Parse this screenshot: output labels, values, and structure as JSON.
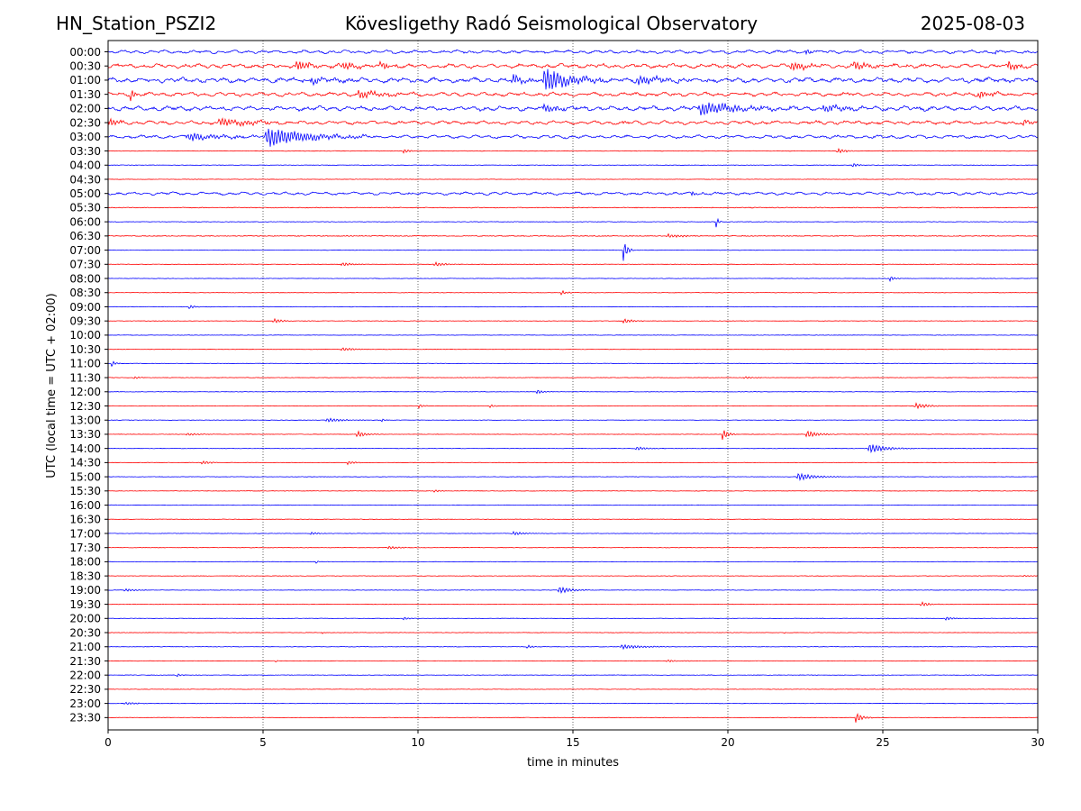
{
  "header": {
    "station": "HN_Station_PSZI2",
    "observatory": "Kövesligethy Radó Seismological Observatory",
    "date": "2025-08-03"
  },
  "chart_data": {
    "type": "line",
    "title": "Kövesligethy Radó Seismological Observatory",
    "xlabel": "time in minutes",
    "ylabel": "UTC (local time = UTC + 02:00)",
    "xlim": [
      0,
      30
    ],
    "xticks": [
      0,
      5,
      10,
      15,
      20,
      25,
      30
    ],
    "grid": "vertical dotted at x = 5, 10, 15, 20, 25",
    "row_labels": [
      "00:00",
      "00:30",
      "01:00",
      "01:30",
      "02:00",
      "02:30",
      "03:00",
      "03:30",
      "04:00",
      "04:30",
      "05:00",
      "05:30",
      "06:00",
      "06:30",
      "07:00",
      "07:30",
      "08:00",
      "08:30",
      "09:00",
      "09:30",
      "10:00",
      "10:30",
      "11:00",
      "11:30",
      "12:00",
      "12:30",
      "13:00",
      "13:30",
      "14:00",
      "14:30",
      "15:00",
      "15:30",
      "16:00",
      "16:30",
      "17:00",
      "17:30",
      "18:00",
      "18:30",
      "19:00",
      "19:30",
      "20:00",
      "20:30",
      "21:00",
      "21:30",
      "22:00",
      "22:30",
      "23:00",
      "23:30"
    ],
    "colors": [
      "#0000ff",
      "#ff0000"
    ],
    "rows_background_noise": [
      1.0,
      1.3,
      1.5,
      1.2,
      1.4,
      1.1,
      1.0,
      0.35,
      0.35,
      0.3,
      0.9,
      0.5,
      0.35,
      0.5,
      0.3,
      0.3,
      0.3,
      0.3,
      0.3,
      0.3,
      0.3,
      0.3,
      0.3,
      0.3,
      0.3,
      0.3,
      0.3,
      0.3,
      0.3,
      0.3,
      0.3,
      0.3,
      0.3,
      0.3,
      0.3,
      0.3,
      0.3,
      0.3,
      0.3,
      0.3,
      0.3,
      0.3,
      0.3,
      0.3,
      0.3,
      0.3,
      0.3,
      0.3
    ],
    "events": [
      {
        "row": 0,
        "t": 22.5,
        "amp": 0.5,
        "dur": 0.6
      },
      {
        "row": 0,
        "t": 28.6,
        "amp": 0.5,
        "dur": 0.3
      },
      {
        "row": 1,
        "t": 6.0,
        "amp": 0.9,
        "dur": 1.5
      },
      {
        "row": 1,
        "t": 7.5,
        "amp": 0.8,
        "dur": 1.2
      },
      {
        "row": 1,
        "t": 8.7,
        "amp": 0.8,
        "dur": 1.0
      },
      {
        "row": 1,
        "t": 22.0,
        "amp": 1.0,
        "dur": 1.2
      },
      {
        "row": 1,
        "t": 24.0,
        "amp": 0.8,
        "dur": 1.5
      },
      {
        "row": 1,
        "t": 29.0,
        "amp": 0.8,
        "dur": 1.0
      },
      {
        "row": 2,
        "t": 13.0,
        "amp": 1.0,
        "dur": 1.0
      },
      {
        "row": 2,
        "t": 14.0,
        "amp": 2.5,
        "dur": 2.2
      },
      {
        "row": 2,
        "t": 17.0,
        "amp": 1.0,
        "dur": 2.0
      },
      {
        "row": 2,
        "t": 6.5,
        "amp": 0.7,
        "dur": 1.2
      },
      {
        "row": 3,
        "t": 0.7,
        "amp": 1.2,
        "dur": 0.5
      },
      {
        "row": 3,
        "t": 8.0,
        "amp": 0.8,
        "dur": 2.0
      },
      {
        "row": 3,
        "t": 28.0,
        "amp": 0.6,
        "dur": 1.5
      },
      {
        "row": 4,
        "t": 14.0,
        "amp": 0.8,
        "dur": 1.5
      },
      {
        "row": 4,
        "t": 19.0,
        "amp": 1.3,
        "dur": 3.5
      },
      {
        "row": 4,
        "t": 23.0,
        "amp": 0.8,
        "dur": 2.0
      },
      {
        "row": 5,
        "t": 0.0,
        "amp": 0.7,
        "dur": 0.8
      },
      {
        "row": 5,
        "t": 3.5,
        "amp": 0.8,
        "dur": 3.0
      },
      {
        "row": 5,
        "t": 16.6,
        "amp": 0.5,
        "dur": 0.2
      },
      {
        "row": 5,
        "t": 29.5,
        "amp": 0.7,
        "dur": 0.5
      },
      {
        "row": 6,
        "t": 2.5,
        "amp": 0.8,
        "dur": 2.5
      },
      {
        "row": 6,
        "t": 5.0,
        "amp": 2.0,
        "dur": 3.5
      },
      {
        "row": 7,
        "t": 9.5,
        "amp": 0.5,
        "dur": 0.5
      },
      {
        "row": 7,
        "t": 23.5,
        "amp": 0.5,
        "dur": 0.8
      },
      {
        "row": 8,
        "t": 24.0,
        "amp": 0.6,
        "dur": 0.4
      },
      {
        "row": 10,
        "t": 18.8,
        "amp": 0.6,
        "dur": 0.4
      },
      {
        "row": 12,
        "t": 19.6,
        "amp": 1.5,
        "dur": 0.2
      },
      {
        "row": 13,
        "t": 18.0,
        "amp": 0.4,
        "dur": 1.5
      },
      {
        "row": 14,
        "t": 16.6,
        "amp": 2.5,
        "dur": 0.35
      },
      {
        "row": 15,
        "t": 7.5,
        "amp": 0.4,
        "dur": 1.0
      },
      {
        "row": 15,
        "t": 10.5,
        "amp": 0.5,
        "dur": 1.0
      },
      {
        "row": 16,
        "t": 25.2,
        "amp": 0.6,
        "dur": 0.4
      },
      {
        "row": 17,
        "t": 14.6,
        "amp": 0.5,
        "dur": 0.5
      },
      {
        "row": 18,
        "t": 2.6,
        "amp": 0.5,
        "dur": 0.4
      },
      {
        "row": 19,
        "t": 5.3,
        "amp": 0.5,
        "dur": 0.8
      },
      {
        "row": 19,
        "t": 16.6,
        "amp": 0.5,
        "dur": 0.8
      },
      {
        "row": 21,
        "t": 7.5,
        "amp": 0.4,
        "dur": 1.0
      },
      {
        "row": 22,
        "t": 0.1,
        "amp": 0.7,
        "dur": 0.3
      },
      {
        "row": 23,
        "t": 0.8,
        "amp": 0.3,
        "dur": 0.5
      },
      {
        "row": 23,
        "t": 20.5,
        "amp": 0.3,
        "dur": 0.8
      },
      {
        "row": 24,
        "t": 13.8,
        "amp": 0.5,
        "dur": 0.6
      },
      {
        "row": 25,
        "t": 26.0,
        "amp": 0.6,
        "dur": 1.2
      },
      {
        "row": 25,
        "t": 10.0,
        "amp": 0.4,
        "dur": 0.5
      },
      {
        "row": 25,
        "t": 12.3,
        "amp": 0.4,
        "dur": 0.4
      },
      {
        "row": 26,
        "t": 7.0,
        "amp": 0.4,
        "dur": 1.5
      },
      {
        "row": 26,
        "t": 8.8,
        "amp": 0.4,
        "dur": 0.3
      },
      {
        "row": 27,
        "t": 8.0,
        "amp": 0.7,
        "dur": 0.8
      },
      {
        "row": 27,
        "t": 19.8,
        "amp": 1.2,
        "dur": 0.5
      },
      {
        "row": 27,
        "t": 22.5,
        "amp": 0.8,
        "dur": 1.0
      },
      {
        "row": 27,
        "t": 2.5,
        "amp": 0.3,
        "dur": 1.0
      },
      {
        "row": 28,
        "t": 24.5,
        "amp": 1.0,
        "dur": 1.5
      },
      {
        "row": 28,
        "t": 17.0,
        "amp": 0.4,
        "dur": 1.0
      },
      {
        "row": 29,
        "t": 3.0,
        "amp": 0.4,
        "dur": 0.8
      },
      {
        "row": 29,
        "t": 7.7,
        "amp": 0.4,
        "dur": 0.6
      },
      {
        "row": 30,
        "t": 22.2,
        "amp": 0.8,
        "dur": 1.5
      },
      {
        "row": 31,
        "t": 10.5,
        "amp": 0.3,
        "dur": 0.6
      },
      {
        "row": 34,
        "t": 6.5,
        "amp": 0.3,
        "dur": 0.8
      },
      {
        "row": 34,
        "t": 13.0,
        "amp": 0.4,
        "dur": 1.2
      },
      {
        "row": 35,
        "t": 9.0,
        "amp": 0.3,
        "dur": 1.0
      },
      {
        "row": 36,
        "t": 6.7,
        "amp": 0.4,
        "dur": 0.2
      },
      {
        "row": 37,
        "t": 29.5,
        "amp": 0.2,
        "dur": 0.8
      },
      {
        "row": 38,
        "t": 14.5,
        "amp": 0.7,
        "dur": 1.2
      },
      {
        "row": 38,
        "t": 0.5,
        "amp": 0.3,
        "dur": 1.0
      },
      {
        "row": 39,
        "t": 26.2,
        "amp": 0.5,
        "dur": 0.8
      },
      {
        "row": 40,
        "t": 27.0,
        "amp": 0.4,
        "dur": 0.6
      },
      {
        "row": 40,
        "t": 9.5,
        "amp": 0.3,
        "dur": 0.5
      },
      {
        "row": 41,
        "t": 6.9,
        "amp": 0.4,
        "dur": 0.1
      },
      {
        "row": 41,
        "t": 21.8,
        "amp": 0.4,
        "dur": 0.1
      },
      {
        "row": 42,
        "t": 16.5,
        "amp": 0.5,
        "dur": 1.8
      },
      {
        "row": 42,
        "t": 13.5,
        "amp": 0.4,
        "dur": 0.5
      },
      {
        "row": 43,
        "t": 5.4,
        "amp": 0.5,
        "dur": 0.1
      },
      {
        "row": 43,
        "t": 18.0,
        "amp": 0.3,
        "dur": 0.8
      },
      {
        "row": 44,
        "t": 2.2,
        "amp": 0.5,
        "dur": 0.3
      },
      {
        "row": 46,
        "t": 0.5,
        "amp": 0.3,
        "dur": 1.0
      },
      {
        "row": 47,
        "t": 24.1,
        "amp": 1.1,
        "dur": 0.6
      }
    ]
  }
}
